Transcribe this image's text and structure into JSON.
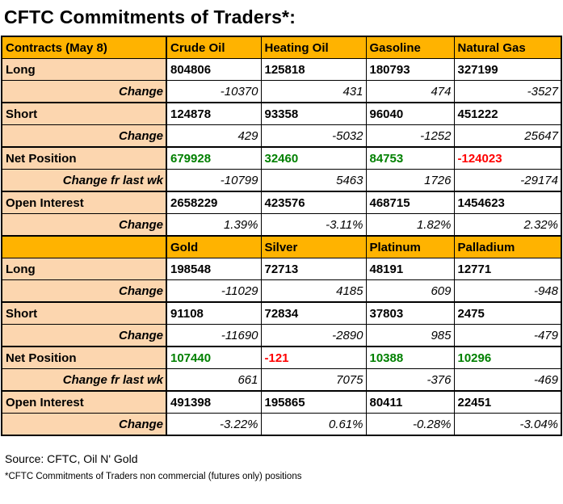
{
  "title": "CFTC Commitments of Traders*:",
  "colors": {
    "header_bg": "#ffb300",
    "label_bg": "#fcd6af",
    "positive": "#008000",
    "negative": "#ff0000",
    "border": "#000000",
    "background": "#ffffff"
  },
  "sections": [
    {
      "header": [
        "Contracts (May 8)",
        "Crude Oil",
        "Heating Oil",
        "Gasoline",
        "Natural Gas"
      ],
      "rows": [
        {
          "label": "Long",
          "type": "main",
          "values": [
            "804806",
            "125818",
            "180793",
            "327199"
          ]
        },
        {
          "label": "Change",
          "type": "change",
          "values": [
            "-10370",
            "431",
            "474",
            "-3527"
          ]
        },
        {
          "label": "Short",
          "type": "main",
          "values": [
            "124878",
            "93358",
            "96040",
            "451222"
          ]
        },
        {
          "label": "Change",
          "type": "change",
          "values": [
            "429",
            "-5032",
            "-1252",
            "25647"
          ]
        },
        {
          "label": "Net Position",
          "type": "main",
          "values": [
            "679928",
            "32460",
            "84753",
            "-124023"
          ],
          "styles": [
            "pos",
            "pos",
            "pos",
            "neg"
          ]
        },
        {
          "label": "Change fr last wk",
          "type": "change",
          "values": [
            "-10799",
            "5463",
            "1726",
            "-29174"
          ]
        },
        {
          "label": "Open Interest",
          "type": "main",
          "values": [
            "2658229",
            "423576",
            "468715",
            "1454623"
          ]
        },
        {
          "label": "Change",
          "type": "change",
          "values": [
            "1.39%",
            "-3.11%",
            "1.82%",
            "2.32%"
          ]
        }
      ]
    },
    {
      "header": [
        "",
        "Gold",
        "Silver",
        "Platinum",
        "Palladium"
      ],
      "rows": [
        {
          "label": "Long",
          "type": "main",
          "values": [
            "198548",
            "72713",
            "48191",
            "12771"
          ]
        },
        {
          "label": "Change",
          "type": "change",
          "values": [
            "-11029",
            "4185",
            "609",
            "-948"
          ]
        },
        {
          "label": "Short",
          "type": "main",
          "values": [
            "91108",
            "72834",
            "37803",
            "2475"
          ]
        },
        {
          "label": "Change",
          "type": "change",
          "values": [
            "-11690",
            "-2890",
            "985",
            "-479"
          ]
        },
        {
          "label": "Net Position",
          "type": "main",
          "values": [
            "107440",
            "-121",
            "10388",
            "10296"
          ],
          "styles": [
            "pos",
            "neg",
            "pos",
            "pos"
          ]
        },
        {
          "label": "Change fr last wk",
          "type": "change",
          "values": [
            "661",
            "7075",
            "-376",
            "-469"
          ]
        },
        {
          "label": "Open Interest",
          "type": "main",
          "values": [
            "491398",
            "195865",
            "80411",
            "22451"
          ]
        },
        {
          "label": "Change",
          "type": "change",
          "values": [
            "-3.22%",
            "0.61%",
            "-0.28%",
            "-3.04%"
          ]
        }
      ]
    }
  ],
  "footer": {
    "source": "Source: CFTC, Oil N' Gold",
    "note": "*CFTC Commitments of Traders non commercial (futures only) positions"
  }
}
